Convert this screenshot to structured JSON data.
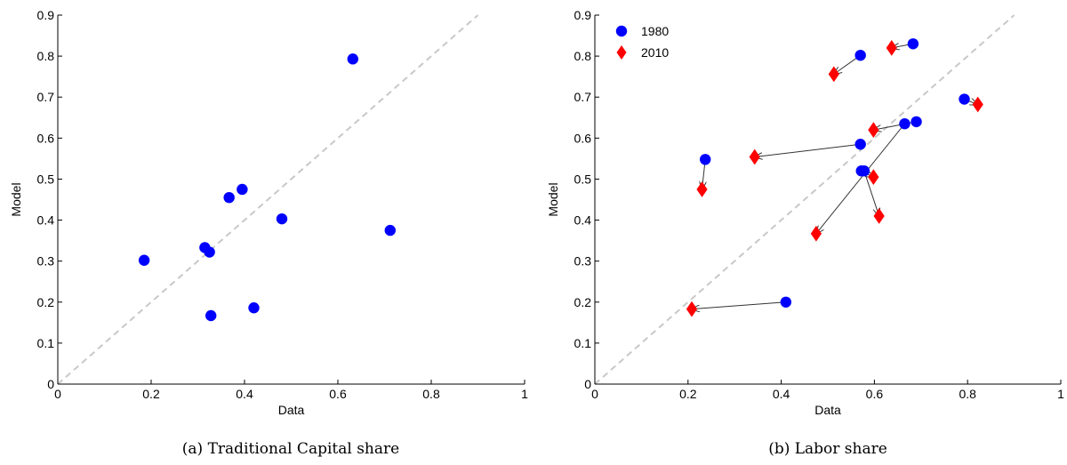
{
  "chart_data": [
    {
      "type": "scatter",
      "caption": "(a) Traditional Capital share",
      "xlabel": "Data",
      "ylabel": "Model",
      "xlim": [
        0,
        1
      ],
      "ylim": [
        0,
        0.9
      ],
      "xticks": [
        "0",
        "0.2",
        "0.4",
        "0.6",
        "0.8",
        "1"
      ],
      "yticks": [
        "0",
        "0.1",
        "0.2",
        "0.3",
        "0.4",
        "0.5",
        "0.6",
        "0.7",
        "0.8",
        "0.9"
      ],
      "xtick_values": [
        0,
        0.2,
        0.4,
        0.6,
        0.8,
        1
      ],
      "ytick_values": [
        0,
        0.1,
        0.2,
        0.3,
        0.4,
        0.5,
        0.6,
        0.7,
        0.8,
        0.9
      ],
      "reference_line": {
        "from": [
          0,
          0
        ],
        "to": [
          0.9,
          0.9
        ],
        "style": "dashed",
        "color": "#c8c8c8"
      },
      "series": [
        {
          "marker": "circle",
          "color": "#0000ff",
          "points": [
            [
              0.185,
              0.302
            ],
            [
              0.315,
              0.333
            ],
            [
              0.325,
              0.322
            ],
            [
              0.328,
              0.167
            ],
            [
              0.367,
              0.455
            ],
            [
              0.395,
              0.475
            ],
            [
              0.42,
              0.186
            ],
            [
              0.48,
              0.403
            ],
            [
              0.632,
              0.793
            ],
            [
              0.712,
              0.375
            ]
          ]
        }
      ]
    },
    {
      "type": "scatter",
      "caption": "(b) Labor share",
      "xlabel": "Data",
      "ylabel": "Model",
      "xlim": [
        0,
        1
      ],
      "ylim": [
        0,
        0.9
      ],
      "xticks": [
        "0",
        "0.2",
        "0.4",
        "0.6",
        "0.8",
        "1"
      ],
      "yticks": [
        "0",
        "0.1",
        "0.2",
        "0.3",
        "0.4",
        "0.5",
        "0.6",
        "0.7",
        "0.8",
        "0.9"
      ],
      "xtick_values": [
        0,
        0.2,
        0.4,
        0.6,
        0.8,
        1
      ],
      "ytick_values": [
        0,
        0.1,
        0.2,
        0.3,
        0.4,
        0.5,
        0.6,
        0.7,
        0.8,
        0.9
      ],
      "legend": {
        "placement": "top-left",
        "entries": [
          "1980",
          "2010"
        ]
      },
      "reference_line": {
        "from": [
          0,
          0
        ],
        "to": [
          0.9,
          0.9
        ],
        "style": "dashed",
        "color": "#c8c8c8"
      },
      "series": [
        {
          "name": "1980",
          "marker": "circle",
          "color": "#0000ff",
          "points": [
            [
              0.237,
              0.548
            ],
            [
              0.41,
              0.2
            ],
            [
              0.57,
              0.802
            ],
            [
              0.57,
              0.585
            ],
            [
              0.572,
              0.52
            ],
            [
              0.578,
              0.52
            ],
            [
              0.665,
              0.635
            ],
            [
              0.69,
              0.64
            ],
            [
              0.683,
              0.83
            ],
            [
              0.793,
              0.695
            ]
          ]
        },
        {
          "name": "2010",
          "marker": "diamond",
          "color": "#ff0000",
          "points": [
            [
              0.23,
              0.475
            ],
            [
              0.208,
              0.183
            ],
            [
              0.513,
              0.756
            ],
            [
              0.343,
              0.554
            ],
            [
              0.598,
              0.505
            ],
            [
              0.61,
              0.41
            ],
            [
              0.475,
              0.367
            ],
            [
              0.598,
              0.62
            ],
            [
              0.637,
              0.82
            ],
            [
              0.822,
              0.682
            ]
          ]
        }
      ],
      "arrows": [
        {
          "from": [
            0.237,
            0.548
          ],
          "to": [
            0.23,
            0.475
          ]
        },
        {
          "from": [
            0.41,
            0.2
          ],
          "to": [
            0.208,
            0.183
          ]
        },
        {
          "from": [
            0.57,
            0.802
          ],
          "to": [
            0.513,
            0.756
          ]
        },
        {
          "from": [
            0.57,
            0.585
          ],
          "to": [
            0.343,
            0.554
          ]
        },
        {
          "from": [
            0.572,
            0.52
          ],
          "to": [
            0.598,
            0.505
          ]
        },
        {
          "from": [
            0.578,
            0.52
          ],
          "to": [
            0.61,
            0.41
          ]
        },
        {
          "from": [
            0.665,
            0.635
          ],
          "to": [
            0.475,
            0.367
          ]
        },
        {
          "from": [
            0.69,
            0.64
          ],
          "to": [
            0.598,
            0.62
          ]
        },
        {
          "from": [
            0.683,
            0.83
          ],
          "to": [
            0.637,
            0.82
          ]
        },
        {
          "from": [
            0.793,
            0.695
          ],
          "to": [
            0.822,
            0.682
          ]
        }
      ]
    }
  ]
}
